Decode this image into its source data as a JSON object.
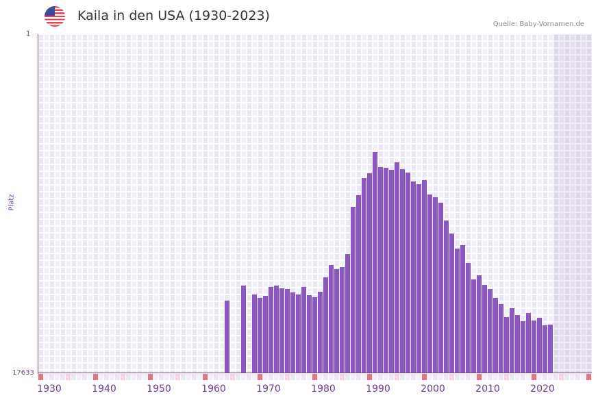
{
  "header": {
    "flag_icon": "us-flag-icon",
    "title": "Kaila in den USA (1930-2023)",
    "source": "Quelle: Baby-Vornamen.de"
  },
  "colors": {
    "bar": "#8b55c6",
    "axis": "#6b3fa0",
    "decade_marker": "#e8737b",
    "half_decade_marker": "#f5d5de",
    "cell_a": "#ece7f8",
    "cell_b": "#f3f0fc",
    "future_shade": "#e2ddee"
  },
  "chart_data": {
    "type": "bar",
    "title": "Kaila in den USA (1930-2023)",
    "xlabel": "",
    "ylabel": "Platz",
    "y_axis_reversed": true,
    "ylim": [
      1,
      17633
    ],
    "ytick_labels": [
      "1",
      "17633"
    ],
    "xlim": [
      1930,
      2030
    ],
    "xtick_labels": [
      "1930",
      "1940",
      "1950",
      "1960",
      "1970",
      "1980",
      "1990",
      "2000",
      "2010",
      "2020"
    ],
    "grid": true,
    "future_shaded_from": 2024,
    "x": [
      1964,
      1967,
      1969,
      1970,
      1971,
      1972,
      1973,
      1974,
      1975,
      1976,
      1977,
      1978,
      1979,
      1980,
      1981,
      1982,
      1983,
      1984,
      1985,
      1986,
      1987,
      1988,
      1989,
      1990,
      1991,
      1992,
      1993,
      1994,
      1995,
      1996,
      1997,
      1998,
      1999,
      2000,
      2001,
      2002,
      2003,
      2004,
      2005,
      2006,
      2007,
      2008,
      2009,
      2010,
      2011,
      2012,
      2013,
      2014,
      2015,
      2016,
      2017,
      2018,
      2019,
      2020,
      2021,
      2022,
      2023
    ],
    "values": [
      13857,
      13073,
      13537,
      13715,
      13608,
      13145,
      13073,
      13216,
      13252,
      13430,
      13537,
      13145,
      13572,
      13679,
      13394,
      12646,
      12005,
      12219,
      12112,
      11435,
      8977,
      8372,
      7481,
      7232,
      6127,
      6911,
      6947,
      7054,
      6662,
      7018,
      7196,
      7659,
      7802,
      7588,
      8336,
      8479,
      8764,
      9690,
      10367,
      11150,
      10972,
      11898,
      12753,
      12539,
      13038,
      13252,
      13715,
      14036,
      14713,
      14250,
      14606,
      14927,
      14499,
      14891,
      14749,
      15141,
      15105
    ]
  }
}
